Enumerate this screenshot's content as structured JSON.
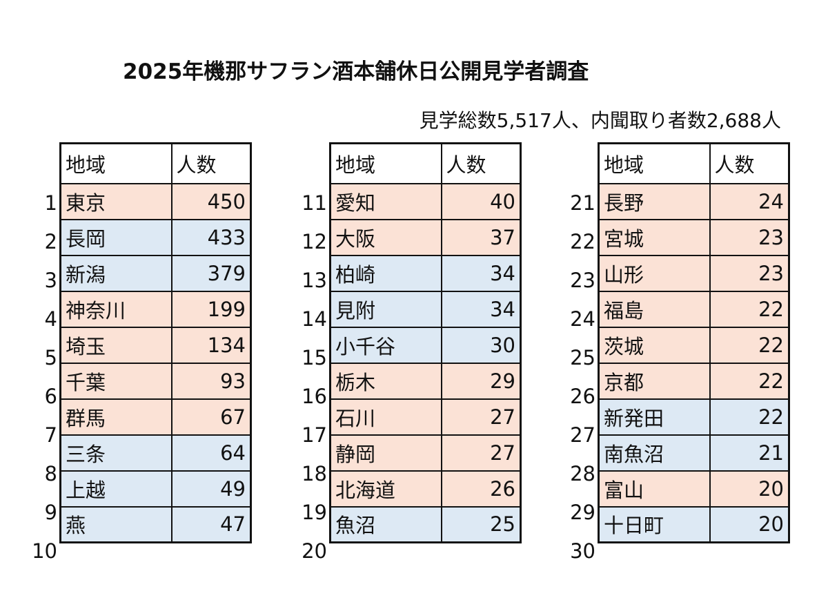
{
  "title": "2025年機那サフラン酒本舗休日公開見学者調査",
  "subtitle": "見学総数5,517人、内聞取り者数2,688人",
  "headers": {
    "region": "地域",
    "count": "人数"
  },
  "colors": {
    "pink": "#fbe2d6",
    "blue": "#dde9f4"
  },
  "tables": [
    {
      "rows": [
        {
          "rank": "1",
          "region": "東京",
          "count": "450",
          "color": "pink"
        },
        {
          "rank": "2",
          "region": "長岡",
          "count": "433",
          "color": "blue"
        },
        {
          "rank": "3",
          "region": "新潟",
          "count": "379",
          "color": "blue"
        },
        {
          "rank": "4",
          "region": "神奈川",
          "count": "199",
          "color": "pink"
        },
        {
          "rank": "5",
          "region": "埼玉",
          "count": "134",
          "color": "pink"
        },
        {
          "rank": "6",
          "region": "千葉",
          "count": "93",
          "color": "pink"
        },
        {
          "rank": "7",
          "region": "群馬",
          "count": "67",
          "color": "pink"
        },
        {
          "rank": "8",
          "region": "三条",
          "count": "64",
          "color": "blue"
        },
        {
          "rank": "9",
          "region": "上越",
          "count": "49",
          "color": "blue"
        },
        {
          "rank": "10",
          "region": "燕",
          "count": "47",
          "color": "blue"
        }
      ]
    },
    {
      "rows": [
        {
          "rank": "11",
          "region": "愛知",
          "count": "40",
          "color": "pink"
        },
        {
          "rank": "12",
          "region": "大阪",
          "count": "37",
          "color": "pink"
        },
        {
          "rank": "13",
          "region": "柏崎",
          "count": "34",
          "color": "blue"
        },
        {
          "rank": "14",
          "region": "見附",
          "count": "34",
          "color": "blue"
        },
        {
          "rank": "15",
          "region": "小千谷",
          "count": "30",
          "color": "blue"
        },
        {
          "rank": "16",
          "region": "栃木",
          "count": "29",
          "color": "pink"
        },
        {
          "rank": "17",
          "region": "石川",
          "count": "27",
          "color": "pink"
        },
        {
          "rank": "18",
          "region": "静岡",
          "count": "27",
          "color": "pink"
        },
        {
          "rank": "19",
          "region": "北海道",
          "count": "26",
          "color": "pink"
        },
        {
          "rank": "20",
          "region": "魚沼",
          "count": "25",
          "color": "blue"
        }
      ]
    },
    {
      "rows": [
        {
          "rank": "21",
          "region": "長野",
          "count": "24",
          "color": "pink"
        },
        {
          "rank": "22",
          "region": "宮城",
          "count": "23",
          "color": "pink"
        },
        {
          "rank": "23",
          "region": "山形",
          "count": "23",
          "color": "pink"
        },
        {
          "rank": "24",
          "region": "福島",
          "count": "22",
          "color": "pink"
        },
        {
          "rank": "25",
          "region": "茨城",
          "count": "22",
          "color": "pink"
        },
        {
          "rank": "26",
          "region": "京都",
          "count": "22",
          "color": "pink"
        },
        {
          "rank": "27",
          "region": "新発田",
          "count": "22",
          "color": "blue"
        },
        {
          "rank": "28",
          "region": "南魚沼",
          "count": "21",
          "color": "blue"
        },
        {
          "rank": "29",
          "region": "富山",
          "count": "20",
          "color": "pink"
        },
        {
          "rank": "30",
          "region": "十日町",
          "count": "20",
          "color": "blue"
        }
      ]
    }
  ]
}
